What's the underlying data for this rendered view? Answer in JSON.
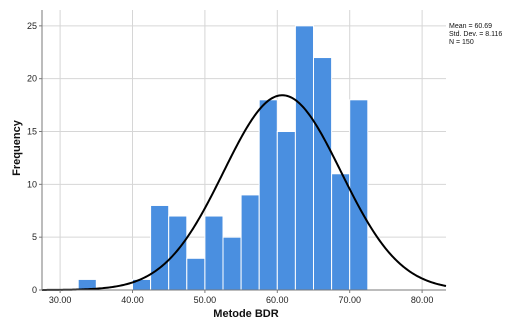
{
  "chart_data": {
    "type": "bar",
    "subtype": "histogram",
    "xlabel": "Metode BDR",
    "ylabel": "Frequency",
    "xlim": [
      27.5,
      83.3
    ],
    "ylim": [
      0,
      26.5
    ],
    "x_ticks": [
      {
        "value": 30,
        "label": "30.00"
      },
      {
        "value": 40,
        "label": "40.00"
      },
      {
        "value": 50,
        "label": "50.00"
      },
      {
        "value": 60,
        "label": "60.00"
      },
      {
        "value": 70,
        "label": "70.00"
      },
      {
        "value": 80,
        "label": "80.00"
      }
    ],
    "y_ticks": [
      0,
      5,
      10,
      15,
      20,
      25
    ],
    "bin_width": 2.5,
    "bins": [
      {
        "start": 32.5,
        "count": 1
      },
      {
        "start": 40.0,
        "count": 1
      },
      {
        "start": 42.5,
        "count": 8
      },
      {
        "start": 45.0,
        "count": 7
      },
      {
        "start": 47.5,
        "count": 3
      },
      {
        "start": 50.0,
        "count": 7
      },
      {
        "start": 52.5,
        "count": 5
      },
      {
        "start": 55.0,
        "count": 9
      },
      {
        "start": 57.5,
        "count": 18
      },
      {
        "start": 60.0,
        "count": 15
      },
      {
        "start": 62.5,
        "count": 25
      },
      {
        "start": 65.0,
        "count": 22
      },
      {
        "start": 67.5,
        "count": 11
      },
      {
        "start": 70.0,
        "count": 18
      }
    ],
    "normal_curve": {
      "mean": 60.69,
      "std_dev": 8.116,
      "n": 150
    },
    "stats_text": [
      "Mean = 60.69",
      "Std. Dev. = 8.116",
      "N = 150"
    ],
    "grid": true,
    "colors": {
      "bar": "#4a8fe0",
      "bar_edge": "#ffffff",
      "curve": "#000000",
      "grid": "#d6d6d6",
      "axis": "#7a7a7a"
    }
  }
}
